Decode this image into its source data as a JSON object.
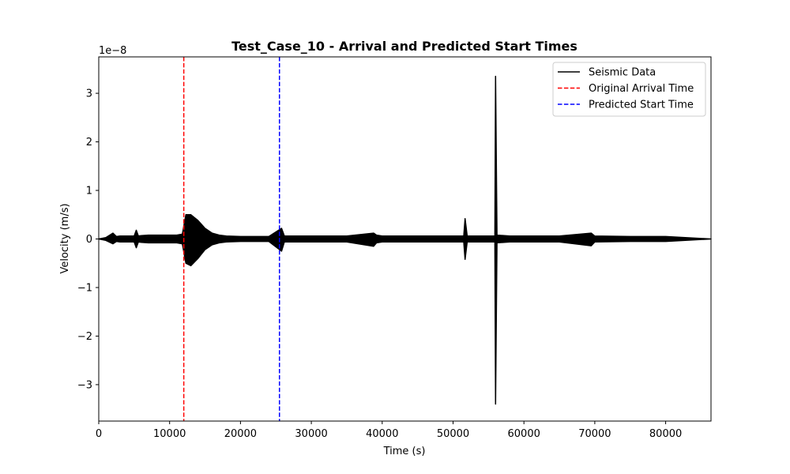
{
  "chart_data": {
    "type": "line",
    "title": "Test_Case_10 - Arrival and Predicted Start Times",
    "xlabel": "Time (s)",
    "ylabel": "Velocity (m/s)",
    "y_offset_label": "1e−8",
    "xlim": [
      0,
      86400
    ],
    "ylim": [
      -3.75,
      3.75
    ],
    "x_ticks": [
      0,
      10000,
      20000,
      30000,
      40000,
      50000,
      60000,
      70000,
      80000
    ],
    "x_tick_labels": [
      "0",
      "10000",
      "20000",
      "30000",
      "40000",
      "50000",
      "60000",
      "70000",
      "80000"
    ],
    "y_ticks": [
      -3,
      -2,
      -1,
      0,
      1,
      2,
      3
    ],
    "y_tick_labels": [
      "−3",
      "−2",
      "−1",
      "0",
      "1",
      "2",
      "3"
    ],
    "grid": false,
    "legend_position": "top-right",
    "legend": [
      "Seismic Data",
      "Original Arrival Time",
      "Predicted Start Time"
    ],
    "series": [
      {
        "name": "Seismic Data",
        "color": "#000000",
        "style": "solid",
        "envelope": {
          "x": [
            0,
            1000,
            2000,
            2500,
            3000,
            3500,
            4000,
            5000,
            5300,
            5600,
            6000,
            7000,
            8000,
            9000,
            10000,
            11000,
            11800,
            12300,
            13000,
            14000,
            15000,
            16000,
            17000,
            18000,
            20000,
            22000,
            24000,
            25800,
            26200,
            27000,
            30000,
            35000,
            38800,
            39200,
            40000,
            45000,
            50000,
            51500,
            51700,
            52000,
            55000,
            55900,
            56000,
            56200,
            58000,
            60000,
            65000,
            69500,
            70000,
            75000,
            80000,
            86400
          ],
          "upper": [
            0.0,
            0.03,
            0.12,
            0.05,
            0.06,
            0.06,
            0.06,
            0.06,
            0.18,
            0.06,
            0.07,
            0.08,
            0.08,
            0.08,
            0.08,
            0.08,
            0.1,
            0.5,
            0.5,
            0.38,
            0.22,
            0.12,
            0.08,
            0.06,
            0.05,
            0.05,
            0.05,
            0.22,
            0.06,
            0.06,
            0.06,
            0.06,
            0.12,
            0.08,
            0.06,
            0.06,
            0.06,
            0.06,
            0.42,
            0.06,
            0.06,
            0.06,
            3.35,
            0.08,
            0.06,
            0.06,
            0.06,
            0.12,
            0.06,
            0.05,
            0.05,
            0.0
          ],
          "lower": [
            0.0,
            -0.03,
            -0.1,
            -0.05,
            -0.06,
            -0.06,
            -0.06,
            -0.06,
            -0.18,
            -0.06,
            -0.07,
            -0.08,
            -0.08,
            -0.08,
            -0.08,
            -0.08,
            -0.1,
            -0.5,
            -0.55,
            -0.4,
            -0.22,
            -0.12,
            -0.08,
            -0.06,
            -0.05,
            -0.05,
            -0.05,
            -0.25,
            -0.06,
            -0.06,
            -0.06,
            -0.06,
            -0.15,
            -0.08,
            -0.06,
            -0.06,
            -0.06,
            -0.06,
            -0.42,
            -0.06,
            -0.06,
            -0.06,
            -3.4,
            -0.08,
            -0.06,
            -0.06,
            -0.06,
            -0.14,
            -0.06,
            -0.05,
            -0.05,
            0.0
          ]
        }
      }
    ],
    "vlines": [
      {
        "name": "Original Arrival Time",
        "x": 12000,
        "color": "#ff0000",
        "style": "dashed"
      },
      {
        "name": "Predicted Start Time",
        "x": 25500,
        "color": "#0000ff",
        "style": "dashed"
      }
    ]
  }
}
